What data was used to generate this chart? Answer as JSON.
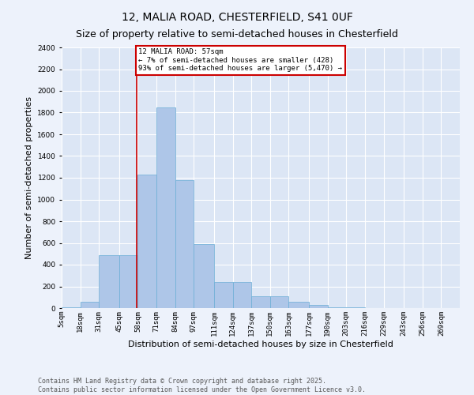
{
  "title1": "12, MALIA ROAD, CHESTERFIELD, S41 0UF",
  "title2": "Size of property relative to semi-detached houses in Chesterfield",
  "xlabel": "Distribution of semi-detached houses by size in Chesterfield",
  "ylabel": "Number of semi-detached properties",
  "bin_labels": [
    "5sqm",
    "18sqm",
    "31sqm",
    "45sqm",
    "58sqm",
    "71sqm",
    "84sqm",
    "97sqm",
    "111sqm",
    "124sqm",
    "137sqm",
    "150sqm",
    "163sqm",
    "177sqm",
    "190sqm",
    "203sqm",
    "216sqm",
    "229sqm",
    "243sqm",
    "256sqm",
    "269sqm"
  ],
  "bin_edges": [
    5,
    18,
    31,
    45,
    58,
    71,
    84,
    97,
    111,
    124,
    137,
    150,
    163,
    177,
    190,
    203,
    216,
    229,
    243,
    256,
    269,
    282
  ],
  "bar_values": [
    5,
    60,
    490,
    490,
    1230,
    1850,
    1180,
    590,
    240,
    240,
    110,
    110,
    60,
    30,
    5,
    5,
    2,
    1,
    1,
    0,
    0
  ],
  "bar_color": "#aec6e8",
  "bar_edgecolor": "#6baed6",
  "vline_x": 57,
  "vline_color": "#cc0000",
  "annotation_title": "12 MALIA ROAD: 57sqm",
  "annotation_line1": "← 7% of semi-detached houses are smaller (428)",
  "annotation_line2": "93% of semi-detached houses are larger (5,470) →",
  "annotation_box_edgecolor": "#cc0000",
  "ylim": [
    0,
    2400
  ],
  "yticks": [
    0,
    200,
    400,
    600,
    800,
    1000,
    1200,
    1400,
    1600,
    1800,
    2000,
    2200,
    2400
  ],
  "footer1": "Contains HM Land Registry data © Crown copyright and database right 2025.",
  "footer2": "Contains public sector information licensed under the Open Government Licence v3.0.",
  "fig_bg_color": "#edf2fb",
  "plot_bg_color": "#dce6f5",
  "grid_color": "#ffffff",
  "title_fontsize": 10,
  "subtitle_fontsize": 9,
  "axis_label_fontsize": 8,
  "tick_fontsize": 6.5,
  "footer_fontsize": 6
}
